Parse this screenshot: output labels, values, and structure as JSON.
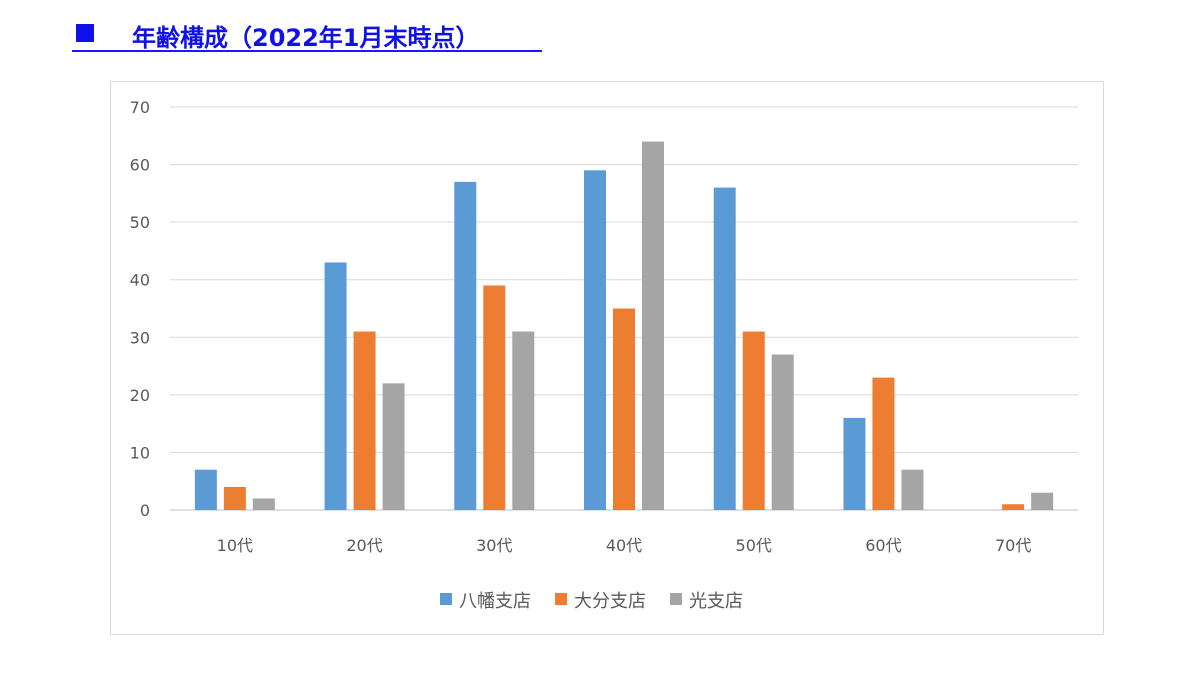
{
  "heading": {
    "marker": "■",
    "title": "年齢構成（2022年1月末時点）",
    "color": "#1010e8"
  },
  "chart_data": {
    "type": "bar",
    "categories": [
      "10代",
      "20代",
      "30代",
      "40代",
      "50代",
      "60代",
      "70代"
    ],
    "series": [
      {
        "name": "八幡支店",
        "color": "#5b9bd5",
        "values": [
          7,
          43,
          57,
          59,
          56,
          16,
          0
        ]
      },
      {
        "name": "大分支店",
        "color": "#ed7d31",
        "values": [
          4,
          31,
          39,
          35,
          31,
          23,
          1
        ]
      },
      {
        "name": "光支店",
        "color": "#a5a5a5",
        "values": [
          2,
          22,
          31,
          64,
          27,
          7,
          3
        ]
      }
    ],
    "ylim": [
      0,
      70
    ],
    "yticks": [
      0,
      10,
      20,
      30,
      40,
      50,
      60,
      70
    ],
    "grid": true,
    "legend": "bottom"
  }
}
